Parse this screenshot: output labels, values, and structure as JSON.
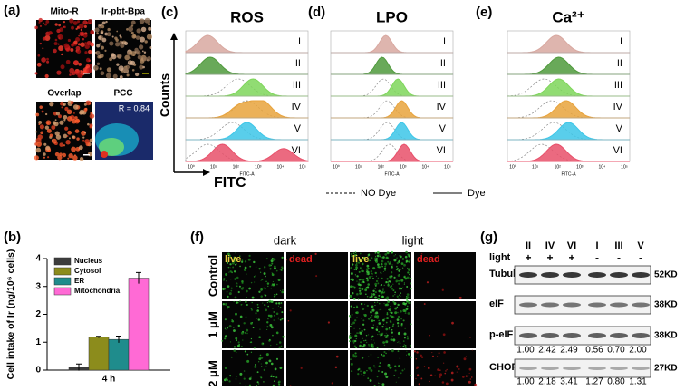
{
  "panel_labels": [
    "(a)",
    "(b)",
    "(c)",
    "(d)",
    "(e)",
    "(f)",
    "(g)"
  ],
  "panel_a": {
    "images": [
      "Mito-R",
      "Ir-pbt-Bpa",
      "Overlap",
      "PCC"
    ],
    "pcc_value": "R = 0.84"
  },
  "flow": {
    "y_label": "Counts",
    "x_label": "FITC",
    "axis_label": "FITC-A",
    "tick_labels": [
      "10⁰",
      "10¹",
      "10²",
      "10³",
      "10⁴",
      "10⁵"
    ],
    "rows": [
      "I",
      "II",
      "III",
      "IV",
      "V",
      "VI"
    ],
    "panels": [
      "ROS",
      "LPO",
      "Ca²⁺"
    ],
    "legend": [
      "NO Dye",
      "Dye"
    ]
  },
  "chart_data": {
    "type": "bar",
    "y_label": "Cell intake of Ir (ng/10⁶ cells)",
    "categories": [
      "4 h"
    ],
    "series": [
      {
        "name": "Nucleus",
        "color": "#3d3d3d",
        "values": [
          0.1
        ],
        "errors": [
          0.12
        ]
      },
      {
        "name": "Cytosol",
        "color": "#8c8c1c",
        "values": [
          1.18
        ],
        "errors": [
          0.03
        ]
      },
      {
        "name": "ER",
        "color": "#1f8c8c",
        "values": [
          1.1
        ],
        "errors": [
          0.12
        ]
      },
      {
        "name": "Mitochondria",
        "color": "#ff6ad5",
        "values": [
          3.3
        ],
        "errors": [
          0.2
        ]
      }
    ],
    "ylim": [
      0,
      4
    ],
    "yticks": [
      0,
      1,
      2,
      3,
      4
    ]
  },
  "panel_f": {
    "columns": [
      "dark",
      "light"
    ],
    "stains": [
      "live",
      "dead"
    ],
    "rows": [
      "Control",
      "1 μM",
      "2 μM"
    ]
  },
  "panel_g": {
    "groups": [
      "II",
      "IV",
      "VI",
      "I",
      "III",
      "V"
    ],
    "light_label": "light",
    "light": [
      "+",
      "+",
      "+",
      "-",
      "-",
      "-"
    ],
    "proteins": [
      {
        "name": "Tubulin",
        "size": "52KD"
      },
      {
        "name": "eIF",
        "size": "38KD"
      },
      {
        "name": "p-eIF",
        "size": "38KD"
      },
      {
        "name": "CHOP",
        "size": "27KD"
      }
    ],
    "p_eif_values": [
      "1.00",
      "2.42",
      "2.49",
      "0.56",
      "0.70",
      "2.00"
    ],
    "chop_values": [
      "1.00",
      "2.18",
      "3.41",
      "1.27",
      "0.80",
      "1.31"
    ]
  }
}
